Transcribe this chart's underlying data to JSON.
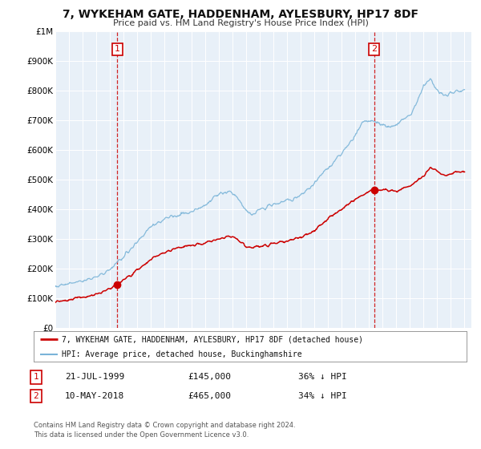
{
  "title": "7, WYKEHAM GATE, HADDENHAM, AYLESBURY, HP17 8DF",
  "subtitle": "Price paid vs. HM Land Registry's House Price Index (HPI)",
  "background_color": "#ffffff",
  "plot_bg_color": "#e8f0f8",
  "grid_color": "#ffffff",
  "hpi_color": "#7ab4d8",
  "price_color": "#cc0000",
  "marker_color": "#cc0000",
  "vline_color": "#cc0000",
  "ylim": [
    0,
    1000000
  ],
  "yticks": [
    0,
    100000,
    200000,
    300000,
    400000,
    500000,
    600000,
    700000,
    800000,
    900000,
    1000000
  ],
  "ytick_labels": [
    "£0",
    "£100K",
    "£200K",
    "£300K",
    "£400K",
    "£500K",
    "£600K",
    "£700K",
    "£800K",
    "£900K",
    "£1M"
  ],
  "xmin": 1995.0,
  "xmax": 2025.5,
  "sale1_x": 1999.55,
  "sale1_y": 145000,
  "sale2_x": 2018.36,
  "sale2_y": 465000,
  "legend_line1": "7, WYKEHAM GATE, HADDENHAM, AYLESBURY, HP17 8DF (detached house)",
  "legend_line2": "HPI: Average price, detached house, Buckinghamshire",
  "note1_label": "1",
  "note1_date": "21-JUL-1999",
  "note1_price": "£145,000",
  "note1_hpi": "36% ↓ HPI",
  "note2_label": "2",
  "note2_date": "10-MAY-2018",
  "note2_price": "£465,000",
  "note2_hpi": "34% ↓ HPI",
  "footer1": "Contains HM Land Registry data © Crown copyright and database right 2024.",
  "footer2": "This data is licensed under the Open Government Licence v3.0."
}
